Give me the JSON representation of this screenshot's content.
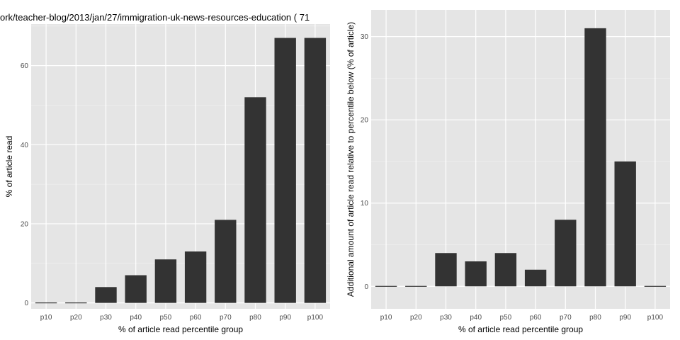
{
  "chart_data": [
    {
      "type": "bar",
      "title": "ork/teacher-blog/2013/jan/27/immigration-uk-news-resources-education ( 71",
      "xlabel": "% of article read percentile group",
      "ylabel": "% of article read",
      "categories": [
        "p10",
        "p20",
        "p30",
        "p40",
        "p50",
        "p60",
        "p70",
        "p80",
        "p90",
        "p100"
      ],
      "values": [
        0,
        0,
        4,
        7,
        11,
        13,
        21,
        52,
        67,
        67
      ],
      "ylim": [
        -1.5,
        70.5
      ],
      "yticks": [
        0,
        20,
        40,
        60
      ],
      "grid": true,
      "legend": "none"
    },
    {
      "type": "bar",
      "title": "",
      "xlabel": "% of article read percentile group",
      "ylabel": "Additional amount of article read relative to percentile below (% of article)",
      "categories": [
        "p10",
        "p20",
        "p30",
        "p40",
        "p50",
        "p60",
        "p70",
        "p80",
        "p90",
        "p100"
      ],
      "values": [
        0,
        0,
        4,
        3,
        4,
        2,
        8,
        31,
        15,
        0
      ],
      "ylim": [
        -2.7,
        33.2
      ],
      "yticks": [
        0,
        10,
        20,
        30
      ],
      "grid": true,
      "legend": "none"
    }
  ],
  "colors": {
    "bar": "#333333",
    "panel_background": "#e5e5e5",
    "grid_major": "#ffffff",
    "grid_minor": "#f2f2f2",
    "tick_text": "#4d4d4d"
  }
}
